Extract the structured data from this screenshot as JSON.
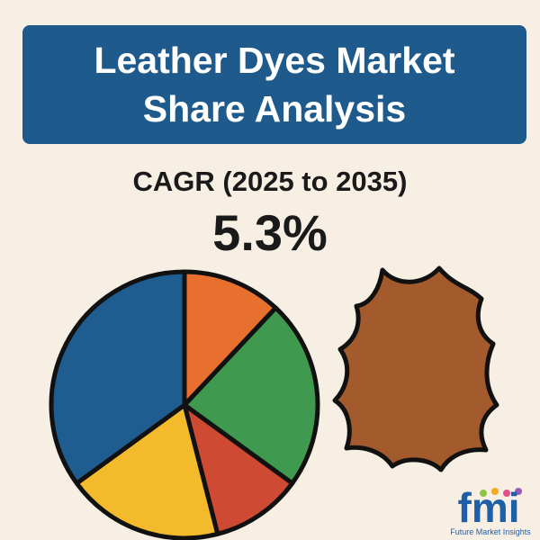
{
  "title": "Leather Dyes Market Share Analysis",
  "subtitle": "CAGR (2025 to 2035)",
  "headline": "5.3%",
  "chart_data": {
    "type": "pie",
    "categories": [
      null,
      null,
      null,
      null,
      null
    ],
    "values": [
      12,
      23,
      11,
      19,
      35
    ],
    "colors": [
      "#e8702e",
      "#3f9a4f",
      "#cf4a32",
      "#f3bb2c",
      "#1f5d91"
    ]
  },
  "logo": {
    "mark": "fmi",
    "name": "Future Market Insights"
  }
}
